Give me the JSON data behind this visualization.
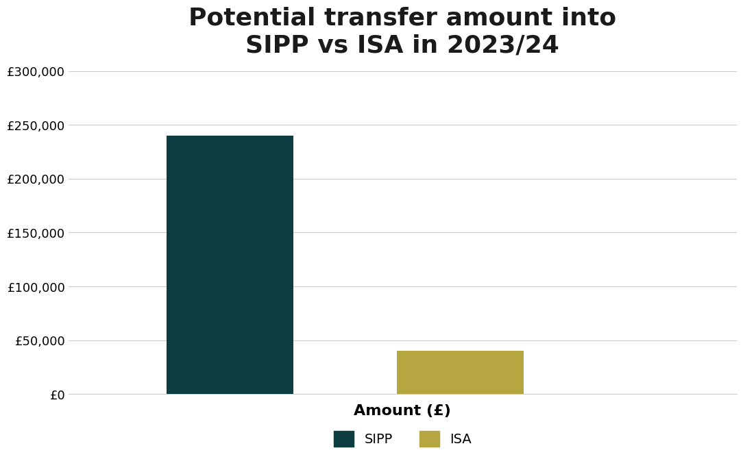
{
  "title": "Potential transfer amount into\nSIPP vs ISA in 2023/24",
  "categories": [
    "SIPP",
    "ISA"
  ],
  "values": [
    240000,
    40000
  ],
  "bar_colors": [
    "#0d3d40",
    "#b5a642"
  ],
  "xlabel": "Amount (£)",
  "ylabel": "",
  "ylim": [
    0,
    300000
  ],
  "yticks": [
    0,
    50000,
    100000,
    150000,
    200000,
    250000,
    300000
  ],
  "ytick_labels": [
    "£0",
    "£50,000",
    "£100,000",
    "£150,000",
    "£200,000",
    "£250,000",
    "£300,000"
  ],
  "bar_positions": [
    1,
    2
  ],
  "xlim": [
    0.3,
    3.2
  ],
  "bar_width": 0.55,
  "background_color": "#ffffff",
  "grid_color": "#cccccc",
  "title_fontsize": 26,
  "xlabel_fontsize": 16,
  "tick_fontsize": 13,
  "legend_labels": [
    "SIPP",
    "ISA"
  ],
  "legend_fontsize": 14
}
